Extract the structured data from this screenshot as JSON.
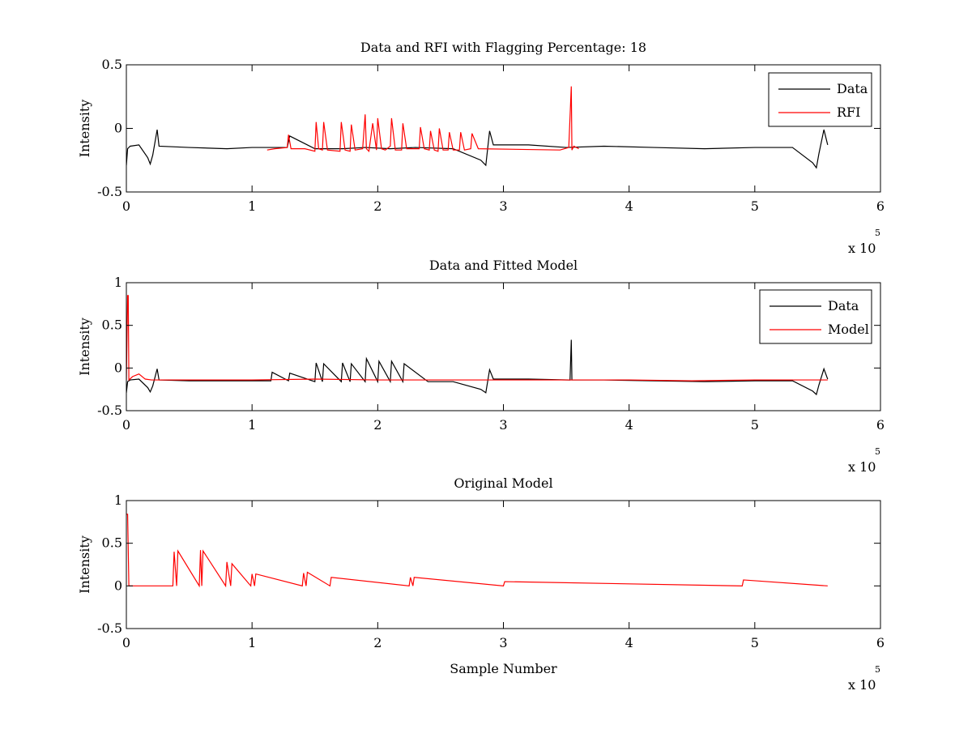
{
  "chart_data": [
    {
      "type": "line",
      "title": "Data and RFI with Flagging Percentage: 18",
      "xlabel": "",
      "ylabel": "Intensity",
      "xlim": [
        0,
        6
      ],
      "ylim": [
        -0.5,
        0.5
      ],
      "x_ticks": [
        0,
        1,
        2,
        3,
        4,
        5,
        6
      ],
      "y_ticks": [
        -0.5,
        0,
        0.5
      ],
      "x_tick_labels": [
        "0",
        "1",
        "2",
        "3",
        "4",
        "5",
        "6"
      ],
      "y_tick_labels": [
        "-0.5",
        "0",
        "0.5"
      ],
      "x_multiplier": {
        "base": "x 10",
        "exponent": "5"
      },
      "legend_position": "top-right",
      "grid": false,
      "series": [
        {
          "name": "Data",
          "color": "#000000",
          "x": [
            0,
            0.01,
            0.03,
            0.1,
            0.17,
            0.19,
            0.21,
            0.245,
            0.26,
            0.5,
            0.8,
            1.0,
            1.28,
            1.3,
            1.5,
            1.72,
            1.9,
            2.1,
            2.3,
            2.6,
            2.82,
            2.86,
            2.89,
            2.92,
            3.2,
            3.5,
            3.8,
            4.2,
            4.6,
            5.0,
            5.3,
            5.46,
            5.49,
            5.51,
            5.55,
            5.58
          ],
          "y": [
            -0.29,
            -0.16,
            -0.14,
            -0.13,
            -0.23,
            -0.28,
            -0.21,
            -0.01,
            -0.14,
            -0.15,
            -0.16,
            -0.15,
            -0.15,
            -0.06,
            -0.16,
            -0.16,
            -0.15,
            -0.16,
            -0.15,
            -0.16,
            -0.25,
            -0.29,
            -0.02,
            -0.13,
            -0.13,
            -0.15,
            -0.14,
            -0.15,
            -0.16,
            -0.15,
            -0.15,
            -0.27,
            -0.31,
            -0.2,
            -0.01,
            -0.13
          ]
        },
        {
          "name": "RFI",
          "color": "#ff0000",
          "x": [
            1.12,
            1.18,
            1.28,
            1.29,
            1.31,
            1.42,
            1.5,
            1.51,
            1.53,
            1.56,
            1.57,
            1.6,
            1.7,
            1.71,
            1.74,
            1.78,
            1.79,
            1.82,
            1.88,
            1.9,
            1.91,
            1.93,
            1.96,
            1.99,
            2.0,
            2.03,
            2.06,
            2.1,
            2.11,
            2.14,
            2.19,
            2.2,
            2.23,
            2.33,
            2.34,
            2.37,
            2.41,
            2.42,
            2.45,
            2.48,
            2.49,
            2.52,
            2.56,
            2.57,
            2.6,
            2.65,
            2.66,
            2.69,
            2.74,
            2.75,
            2.8,
            3.45,
            3.52,
            3.54,
            3.545,
            3.56,
            3.6
          ],
          "y": [
            -0.17,
            -0.16,
            -0.15,
            -0.05,
            -0.16,
            -0.16,
            -0.18,
            0.05,
            -0.16,
            -0.17,
            0.05,
            -0.17,
            -0.18,
            0.05,
            -0.17,
            -0.18,
            0.03,
            -0.17,
            -0.16,
            0.11,
            -0.16,
            -0.18,
            0.04,
            -0.17,
            0.08,
            -0.16,
            -0.17,
            -0.14,
            0.08,
            -0.17,
            -0.17,
            0.04,
            -0.16,
            -0.16,
            0.01,
            -0.16,
            -0.17,
            -0.02,
            -0.17,
            -0.18,
            0.0,
            -0.17,
            -0.17,
            -0.03,
            -0.17,
            -0.17,
            -0.03,
            -0.17,
            -0.16,
            -0.04,
            -0.16,
            -0.17,
            -0.15,
            0.33,
            -0.17,
            -0.14,
            -0.16
          ]
        }
      ]
    },
    {
      "type": "line",
      "title": "Data and Fitted Model",
      "xlabel": "",
      "ylabel": "Intensity",
      "xlim": [
        0,
        6
      ],
      "ylim": [
        -0.5,
        1
      ],
      "x_ticks": [
        0,
        1,
        2,
        3,
        4,
        5,
        6
      ],
      "y_ticks": [
        -0.5,
        0,
        0.5,
        1
      ],
      "x_tick_labels": [
        "0",
        "1",
        "2",
        "3",
        "4",
        "5",
        "6"
      ],
      "y_tick_labels": [
        "-0.5",
        "0",
        "0.5",
        "1"
      ],
      "x_multiplier": {
        "base": "x 10",
        "exponent": "5"
      },
      "legend_position": "top-right",
      "grid": false,
      "series": [
        {
          "name": "Data",
          "color": "#000000",
          "x": [
            0,
            0.01,
            0.03,
            0.1,
            0.17,
            0.19,
            0.21,
            0.245,
            0.26,
            0.5,
            1.0,
            1.15,
            1.16,
            1.29,
            1.3,
            1.5,
            1.51,
            1.56,
            1.57,
            1.71,
            1.72,
            1.78,
            1.79,
            1.9,
            1.91,
            2.0,
            2.01,
            2.1,
            2.11,
            2.2,
            2.21,
            2.4,
            2.6,
            2.82,
            2.86,
            2.89,
            2.92,
            3.2,
            3.53,
            3.54,
            3.545,
            3.56,
            3.8,
            4.2,
            4.6,
            5.0,
            5.3,
            5.46,
            5.49,
            5.51,
            5.55,
            5.58
          ],
          "y": [
            -0.29,
            -0.16,
            -0.14,
            -0.13,
            -0.23,
            -0.28,
            -0.21,
            -0.01,
            -0.14,
            -0.15,
            -0.15,
            -0.15,
            -0.05,
            -0.15,
            -0.06,
            -0.16,
            0.06,
            -0.16,
            0.05,
            -0.16,
            0.06,
            -0.16,
            0.05,
            -0.16,
            0.11,
            -0.16,
            0.08,
            -0.16,
            0.08,
            -0.16,
            0.05,
            -0.16,
            -0.16,
            -0.25,
            -0.29,
            -0.02,
            -0.13,
            -0.13,
            -0.14,
            0.33,
            -0.14,
            -0.14,
            -0.14,
            -0.15,
            -0.16,
            -0.15,
            -0.15,
            -0.27,
            -0.31,
            -0.2,
            -0.01,
            -0.13
          ]
        },
        {
          "name": "Model",
          "color": "#ff0000",
          "x": [
            0,
            0.01,
            0.015,
            0.02,
            0.05,
            0.1,
            0.15,
            0.2,
            0.3,
            1.0,
            1.5,
            2.0,
            2.5,
            3.0,
            3.5,
            4.0,
            4.5,
            5.0,
            5.5,
            5.58
          ],
          "y": [
            -0.14,
            0.85,
            0.85,
            -0.14,
            -0.1,
            -0.07,
            -0.13,
            -0.14,
            -0.14,
            -0.14,
            -0.13,
            -0.14,
            -0.14,
            -0.14,
            -0.14,
            -0.14,
            -0.15,
            -0.14,
            -0.14,
            -0.14
          ]
        }
      ]
    },
    {
      "type": "line",
      "title": "Original Model",
      "xlabel": "Sample Number",
      "ylabel": "Intensity",
      "xlim": [
        0,
        6
      ],
      "ylim": [
        -0.5,
        1
      ],
      "x_ticks": [
        0,
        1,
        2,
        3,
        4,
        5,
        6
      ],
      "y_ticks": [
        -0.5,
        0,
        0.5,
        1
      ],
      "x_tick_labels": [
        "0",
        "1",
        "2",
        "3",
        "4",
        "5",
        "6"
      ],
      "y_tick_labels": [
        "-0.5",
        "0",
        "0.5",
        "1"
      ],
      "x_multiplier": {
        "base": "x 10",
        "exponent": "5"
      },
      "grid": false,
      "series": [
        {
          "color": "#ff0000",
          "x": [
            0,
            0.01,
            0.02,
            0.37,
            0.38,
            0.4,
            0.41,
            0.58,
            0.59,
            0.6,
            0.61,
            0.79,
            0.8,
            0.83,
            0.84,
            0.99,
            1.0,
            1.02,
            1.03,
            1.4,
            1.41,
            1.43,
            1.44,
            1.62,
            1.63,
            2.25,
            2.26,
            2.28,
            2.29,
            3.0,
            3.01,
            4.9,
            4.91,
            5.58
          ],
          "y": [
            0.84,
            0.84,
            0.0,
            0.0,
            0.4,
            0.0,
            0.41,
            0.0,
            0.42,
            0.0,
            0.41,
            0.0,
            0.28,
            0.0,
            0.26,
            0.0,
            0.14,
            0.0,
            0.14,
            0.0,
            0.15,
            0.0,
            0.16,
            0.0,
            0.1,
            0.0,
            0.1,
            0.0,
            0.1,
            0.0,
            0.05,
            0.0,
            0.07,
            0.0
          ]
        }
      ]
    }
  ]
}
